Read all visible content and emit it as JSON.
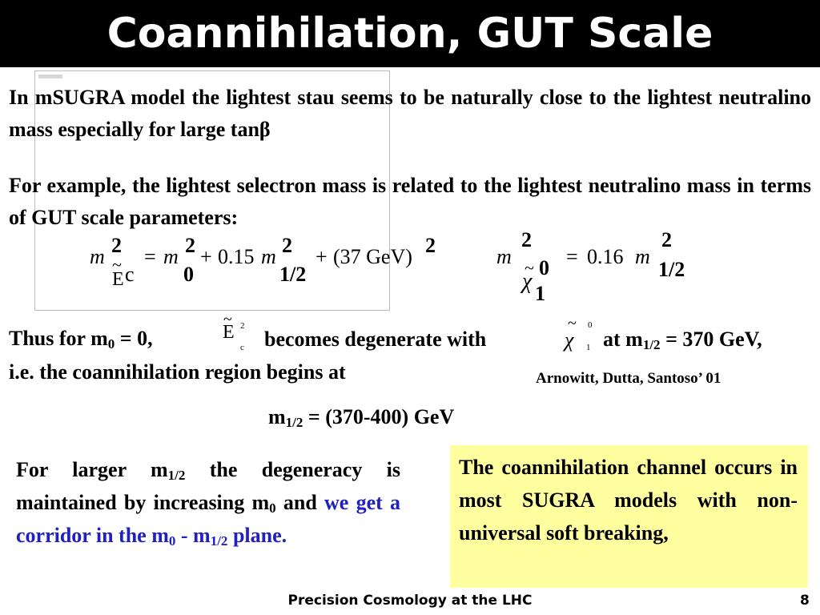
{
  "title": "Coannihilation, GUT Scale",
  "para1": "In mSUGRA model the lightest stau seems to be naturally close to the lightest neutralino mass especially for large tanβ",
  "para2": "For example, the lightest selectron mass is related to the  lightest neutralino mass in terms of  GUT scale parameters:",
  "eq1": {
    "m": "m",
    "sq": "2",
    "E": "E",
    "c": "c",
    "eq": "=",
    "m0": "m",
    "zero": "0",
    "plus1": "+",
    "coef1": "0.15",
    "mhalf": "m",
    "half": "1/2",
    "plus2": "+",
    "paren": "(37 GeV)"
  },
  "eq2": {
    "m": "m",
    "sq": "2",
    "chi": "χ",
    "zero": "0",
    "one": "1",
    "eq": "=",
    "coef": "0.16",
    "mhalf": "m",
    "half": "1/2"
  },
  "line3": {
    "pre": "Thus for m",
    "sub0": "0",
    "mid": " = 0,",
    "inline_E": "E",
    "inline_E_sup": "2",
    "inline_E_sub": "c",
    "degen": "becomes degenerate with",
    "inline_chi": "χ",
    "inline_chi_sup": "0",
    "inline_chi_sub": "1",
    "at": "at m",
    "subhalf": "1/2",
    "val": " = 370 GeV,"
  },
  "line3b": "i.e. the coannihilation region begins at",
  "citation": "Arnowitt, Dutta, Santoso’ 01",
  "range": {
    "pre": "m",
    "sub": "1/2",
    "val": " = (370-400) GeV"
  },
  "left_box": {
    "t1": "For larger m",
    "s1": "1/2",
    "t2": " the degeneracy is maintained by increasing m",
    "s2": "0",
    "t3": " and ",
    "blue1": "we get a corridor in the m",
    "s3": "0",
    "blue2": " - m",
    "s4": "1/2",
    "blue3": " plane."
  },
  "yellow_box": "The coannihilation channel occurs in most SUGRA models with non-universal soft breaking,",
  "footer": "Precision Cosmology at the LHC",
  "page_number": "8",
  "colors": {
    "title_bg": "#000000",
    "title_fg": "#ffffff",
    "highlight_box": "#ffffa0",
    "accent_blue": "#2020c0"
  }
}
